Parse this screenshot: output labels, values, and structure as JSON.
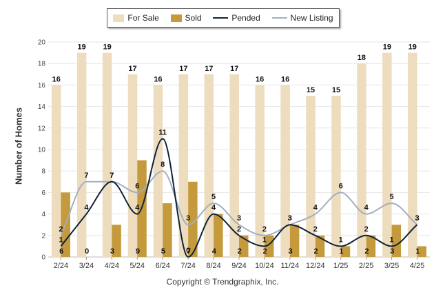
{
  "chart_data": {
    "type": "bar",
    "categories": [
      "2/24",
      "3/24",
      "4/24",
      "5/24",
      "6/24",
      "7/24",
      "8/24",
      "9/24",
      "10/24",
      "11/24",
      "12/24",
      "1/25",
      "2/25",
      "3/25",
      "4/25"
    ],
    "series": [
      {
        "name": "For Sale",
        "kind": "bar",
        "color": "#eddcbd",
        "values": [
          16,
          19,
          19,
          17,
          16,
          17,
          17,
          17,
          16,
          16,
          15,
          15,
          18,
          19,
          19
        ]
      },
      {
        "name": "Sold",
        "kind": "bar",
        "color": "#c49a3c",
        "values": [
          6,
          0,
          3,
          9,
          5,
          7,
          4,
          2,
          2,
          3,
          2,
          1,
          2,
          3,
          1
        ]
      },
      {
        "name": "Pended",
        "kind": "line",
        "color": "#0d2238",
        "values": [
          1,
          4,
          7,
          4,
          11,
          0,
          4,
          2,
          1,
          3,
          2,
          1,
          2,
          1,
          3
        ]
      },
      {
        "name": "New Listing",
        "kind": "line",
        "color": "#a3aebf",
        "values": [
          2,
          7,
          7,
          6,
          8,
          3,
          5,
          3,
          2,
          3,
          4,
          6,
          4,
          5,
          3
        ]
      }
    ],
    "ylabel": "Number of Homes",
    "ylim": [
      0,
      20
    ],
    "yticks": [
      0,
      2,
      4,
      6,
      8,
      10,
      12,
      14,
      16,
      18,
      20
    ],
    "grid": true,
    "legend": "top"
  },
  "copyright": "Copyright © Trendgraphix, Inc."
}
